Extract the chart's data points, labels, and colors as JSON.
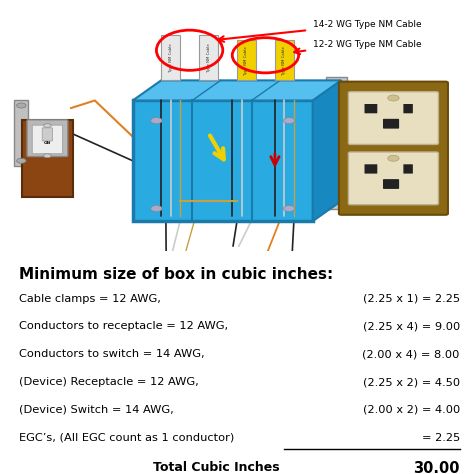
{
  "title": "Minimum size of box in cubic inches:",
  "rows": [
    {
      "left": "Cable clamps = 12 AWG,",
      "right": "(2.25 x 1) = 2.25",
      "underline": false
    },
    {
      "left": "Conductors to receptacle = 12 AWG,",
      "right": "(2.25 x 4) = 9.00",
      "underline": false
    },
    {
      "left": "Conductors to switch = 14 AWG,",
      "right": "(2.00 x 4) = 8.00",
      "underline": false
    },
    {
      "left": "(Device) Receptacle = 12 AWG,",
      "right": "(2.25 x 2) = 4.50",
      "underline": false
    },
    {
      "left": "(Device) Switch = 14 AWG,",
      "right": "(2.00 x 2) = 4.00",
      "underline": false
    },
    {
      "left": "EGC’s, (All EGC count as 1 conductor)",
      "right": "= 2.25",
      "underline": true
    }
  ],
  "total_label": "Total Cubic Inches",
  "total_value": "30.00",
  "bg_color": "#ffffff",
  "text_color": "#000000",
  "title_color": "#000000",
  "label1": "14-2 WG Type NM Cable",
  "label2": "12-2 WG Type NM Cable",
  "box_blue": "#29ABE2",
  "box_blue_dark": "#1a7aaa",
  "box_blue_light": "#55c0f0",
  "cable_yellow": "#f0d000",
  "cable_white": "#e8e8e8",
  "switch_red": "#cc2200",
  "recep_cream": "#d8cba0",
  "recep_face": "#e8dfc0",
  "wire_orange": "#e08020",
  "wire_black": "#222222",
  "wire_bare": "#c8a040",
  "wire_white": "#cccccc"
}
